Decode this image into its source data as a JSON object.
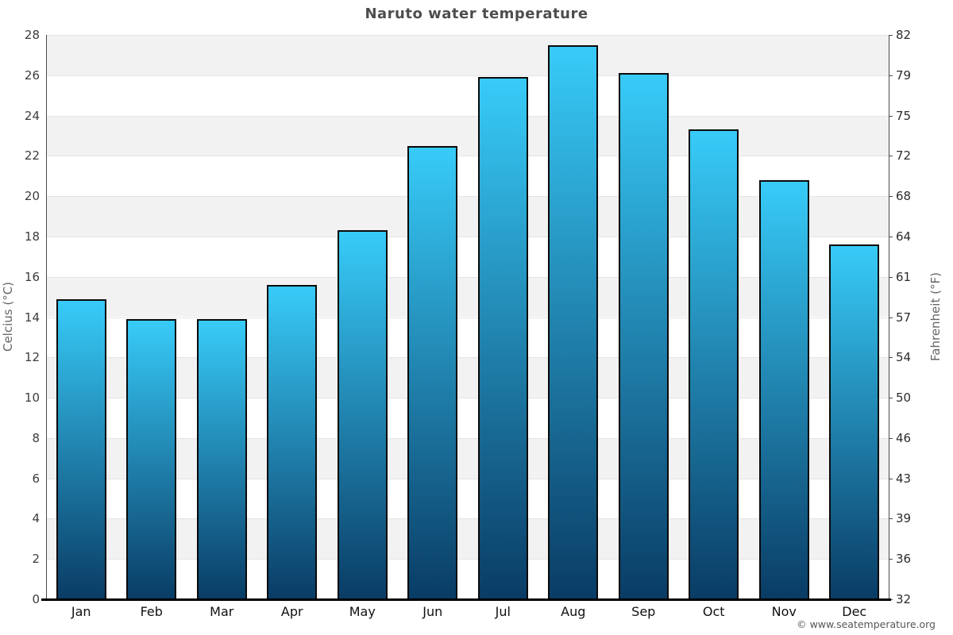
{
  "title": "Naruto water temperature",
  "footer": "© www.seatemperature.org",
  "chart_data": {
    "type": "bar",
    "title": "Naruto water temperature",
    "categories": [
      "Jan",
      "Feb",
      "Mar",
      "Apr",
      "May",
      "Jun",
      "Jul",
      "Aug",
      "Sep",
      "Oct",
      "Nov",
      "Dec"
    ],
    "values": [
      14.9,
      13.9,
      13.9,
      15.6,
      18.3,
      22.5,
      25.9,
      27.5,
      26.1,
      23.3,
      20.8,
      17.6
    ],
    "series_name": "water temperature (°C)",
    "xlabel": "",
    "ylabel_left": "Celcius (°C)",
    "ylabel_right": "Fahrenheit (°F)",
    "ylim": [
      0,
      28
    ],
    "y_ticks_left": [
      0,
      2,
      4,
      6,
      8,
      10,
      12,
      14,
      16,
      18,
      20,
      22,
      24,
      26,
      28
    ],
    "y_ticks_right": [
      "32",
      "36",
      "39",
      "43",
      "46",
      "50",
      "54",
      "57",
      "61",
      "64",
      "68",
      "72",
      "75",
      "79",
      "82"
    ],
    "grid": "alternating horizontal bands, top band gray",
    "legend": "none",
    "colors": {
      "bar_gradient_top": "#38cbf8",
      "bar_gradient_bottom": "#093c65",
      "bar_border": "#0a0a0a",
      "band_gray": "#f2f2f2",
      "band_white": "#ffffff",
      "axis_line": "#4a4a4a",
      "bottom_axis": "#000000",
      "title_color": "#4d4d4d",
      "tick_color": "#333333"
    }
  }
}
